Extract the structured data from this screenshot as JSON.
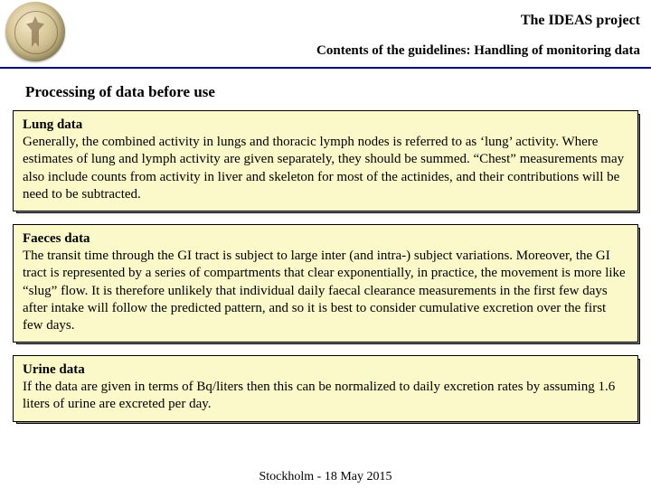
{
  "header": {
    "title": "The IDEAS project",
    "subtitle": "Contents of the guidelines: Handling of monitoring data"
  },
  "section_heading": "Processing of data before use",
  "boxes": [
    {
      "title": "Lung data",
      "body": "Generally, the combined activity in lungs and thoracic lymph nodes is referred to as ‘lung’ activity. Where estimates of lung and lymph activity are given separately, they should be summed. “Chest” measurements may also include counts from activity in liver and skeleton for most of the actinides, and their contributions will be need to be subtracted."
    },
    {
      "title": "Faeces data",
      "body": "The transit time through the GI tract is subject to large inter (and intra-) subject variations. Moreover, the GI tract is represented by a series of compartments that clear exponentially, in practice, the movement is more like “slug” flow. It is therefore unlikely that individual daily faecal clearance measurements in the first few days after intake will follow the predicted pattern, and so it is best to consider cumulative excretion over the first few days."
    },
    {
      "title": "Urine data",
      "body": "If the data are given in terms of Bq/liters then this can be normalized to daily excretion rates by assuming 1.6 liters of urine are excreted per day."
    }
  ],
  "footer": {
    "line2": "Stockholm - 18 May 2015"
  }
}
